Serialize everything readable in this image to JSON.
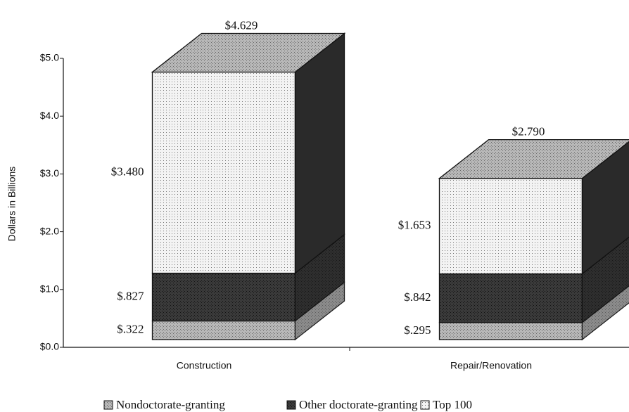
{
  "chart_data": {
    "type": "bar3d-stacked",
    "y_label": "Dollars in Billions",
    "categories": [
      "Construction",
      "Repair/Renovation"
    ],
    "series": [
      {
        "name": "Nondoctorate-granting",
        "color": "#b8b8b8",
        "values": [
          0.322,
          0.295
        ],
        "value_labels": [
          "$.322",
          "$.295"
        ]
      },
      {
        "name": "Other doctorate-granting",
        "color": "#3a3a3a",
        "values": [
          0.827,
          0.842
        ],
        "value_labels": [
          "$.827",
          "$.842"
        ]
      },
      {
        "name": "Top 100",
        "color": "#f3f3f3",
        "values": [
          3.48,
          1.653
        ],
        "value_labels": [
          "$3.480",
          "$1.653"
        ]
      }
    ],
    "totals": [
      4.629,
      2.79
    ],
    "total_labels": [
      "$4.629",
      "$2.790"
    ],
    "ylim": [
      0,
      5
    ],
    "yticks": [
      {
        "value": 0,
        "label": "$0.0"
      },
      {
        "value": 1,
        "label": "$1.0"
      },
      {
        "value": 2,
        "label": "$2.0"
      },
      {
        "value": 3,
        "label": "$3.0"
      },
      {
        "value": 4,
        "label": "$4.0"
      },
      {
        "value": 5,
        "label": "$5.0"
      }
    ]
  }
}
